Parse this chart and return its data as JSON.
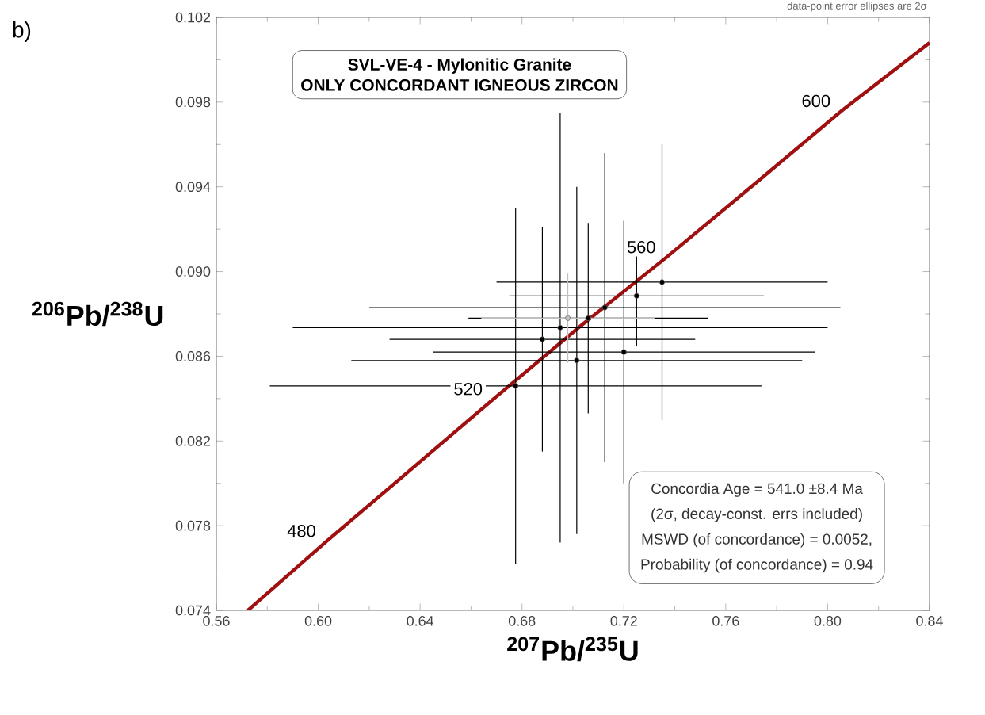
{
  "chart_data": {
    "type": "scatter",
    "title": "SVL-VE-4 - Mylonitic Granite",
    "subtitle": "ONLY CONCORDANT  IGNEOUS ZIRCON",
    "xlabel": "$^{207}$Pb/$^{235}$U",
    "ylabel": "$^{206}$Pb/$^{238}$U",
    "xlim": [
      0.56,
      0.84
    ],
    "ylim": [
      0.074,
      0.102
    ],
    "xticks": [
      0.56,
      {
        "value": 0.6,
        "label": "0.60"
      },
      0.64,
      0.68,
      0.72,
      0.76,
      {
        "value": 0.8,
        "label": "0.80"
      },
      0.84
    ],
    "yticks": [
      0.074,
      0.078,
      0.082,
      0.086,
      {
        "value": 0.09,
        "label": "0.090"
      },
      0.094,
      0.098,
      0.102
    ],
    "annotations": [
      "b)",
      "data-point error ellipses are 2σ",
      "Concordia Age = 541.0 ±8.4 Ma",
      "(2σ, decay-const. errs included)",
      "MSWD (of concordance) = 0.0052,",
      "Probability (of concordance) = 0.94",
      {
        "text": "480",
        "x": 0.6036,
        "y": 0.0773
      },
      {
        "text": "520",
        "x": 0.669,
        "y": 0.084
      },
      {
        "text": "560",
        "x": 0.737,
        "y": 0.0907
      },
      {
        "text": "600",
        "x": 0.8056,
        "y": 0.0976
      }
    ],
    "series": [
      {
        "type": "line",
        "color": "#a01010",
        "marker": "none",
        "line_style": "solid",
        "x": [
          0.5724,
          0.6036,
          0.6359,
          0.669,
          0.7027,
          0.737,
          0.771,
          0.8056,
          0.84
        ],
        "values": [
          0.074,
          0.0773,
          0.0806,
          0.084,
          0.0874,
          0.0907,
          0.0941,
          0.0976,
          0.1008
        ]
      },
      {
        "color": "#000000",
        "marker": "circle",
        "x": [
          0.6775,
          0.695,
          0.7015,
          0.7125,
          0.688,
          0.706,
          0.725,
          0.735,
          0.72
        ],
        "values": [
          0.0846,
          0.08735,
          0.0858,
          0.0883,
          0.0868,
          0.0878,
          0.08885,
          0.0895,
          0.0862
        ],
        "xerrors": [
          0.0965,
          0.105,
          0.0885,
          0.0925,
          0.06,
          0.047,
          0.05,
          0.065,
          0.075
        ],
        "errors": [
          0.0084,
          0.01015,
          0.0082,
          0.0073,
          0.0053,
          0.0045,
          0.00235,
          0.0065,
          0.0062
        ]
      },
      {
        "color": "#bfbfbf",
        "marker": "circle",
        "x": [
          0.698
        ],
        "values": [
          0.0878
        ],
        "xerrors": [
          0.034
        ],
        "errors": [
          0.0021
        ]
      }
    ]
  }
}
